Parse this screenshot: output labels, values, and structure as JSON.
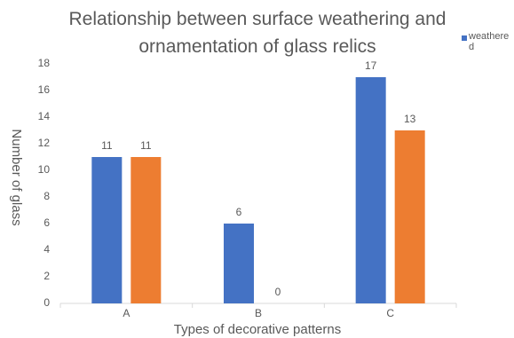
{
  "chart_data": {
    "type": "bar",
    "title": "Relationship between surface weathering and ornamentation of glass relics",
    "x_label": "Types of decorative patterns",
    "y_label": "Number of glass",
    "categories": [
      "A",
      "B",
      "C"
    ],
    "series": [
      {
        "name": "weathered",
        "color": "#4472c4",
        "values": [
          11,
          6,
          17
        ]
      },
      {
        "color": "#ed7d31",
        "values": [
          11,
          0,
          13
        ]
      }
    ],
    "ylim": [
      0,
      18
    ],
    "yticks": [
      0,
      2,
      4,
      6,
      8,
      10,
      12,
      14,
      16,
      18
    ],
    "grid": false,
    "legend": "top-right"
  }
}
